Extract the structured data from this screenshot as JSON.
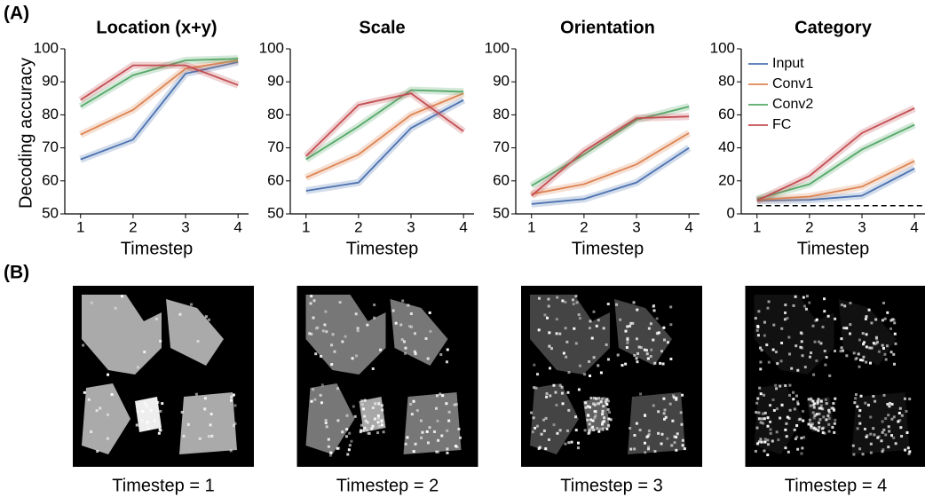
{
  "panel_labels": [
    "(A)",
    "(B)"
  ],
  "chart_data": [
    {
      "type": "line",
      "title": "Location (x+y)",
      "xlabel": "Timestep",
      "ylabel": "Decoding accuracy",
      "x": [
        1,
        2,
        3,
        4
      ],
      "xlim": [
        0.7,
        4.2
      ],
      "xticks": [
        1,
        2,
        3,
        4
      ],
      "ylim": [
        50,
        100
      ],
      "yticks": [
        50,
        60,
        70,
        80,
        90,
        100
      ],
      "series": [
        {
          "name": "Input",
          "color": "#4c72b0",
          "values": [
            66.5,
            72.5,
            92.5,
            96
          ]
        },
        {
          "name": "Conv1",
          "color": "#dd8452",
          "values": [
            74,
            81.5,
            94,
            96.5
          ]
        },
        {
          "name": "Conv2",
          "color": "#55a868",
          "values": [
            82.5,
            92,
            96.5,
            97
          ]
        },
        {
          "name": "FC",
          "color": "#c44e52",
          "values": [
            84.5,
            95,
            95,
            89
          ]
        }
      ]
    },
    {
      "type": "line",
      "title": "Scale",
      "xlabel": "Timestep",
      "x": [
        1,
        2,
        3,
        4
      ],
      "xlim": [
        0.7,
        4.2
      ],
      "xticks": [
        1,
        2,
        3,
        4
      ],
      "ylim": [
        50,
        100
      ],
      "yticks": [
        50,
        60,
        70,
        80,
        90,
        100
      ],
      "series": [
        {
          "name": "Input",
          "color": "#4c72b0",
          "values": [
            57,
            59.5,
            76,
            84.5
          ]
        },
        {
          "name": "Conv1",
          "color": "#dd8452",
          "values": [
            61,
            68,
            80,
            86.5
          ]
        },
        {
          "name": "Conv2",
          "color": "#55a868",
          "values": [
            66.5,
            76.5,
            87.5,
            87
          ]
        },
        {
          "name": "FC",
          "color": "#c44e52",
          "values": [
            67.5,
            83,
            86.5,
            75
          ]
        }
      ]
    },
    {
      "type": "line",
      "title": "Orientation",
      "xlabel": "Timestep",
      "x": [
        1,
        2,
        3,
        4
      ],
      "xlim": [
        0.7,
        4.2
      ],
      "xticks": [
        1,
        2,
        3,
        4
      ],
      "ylim": [
        50,
        100
      ],
      "yticks": [
        50,
        60,
        70,
        80,
        90,
        100
      ],
      "series": [
        {
          "name": "Input",
          "color": "#4c72b0",
          "values": [
            53,
            54.5,
            59.5,
            70
          ]
        },
        {
          "name": "Conv1",
          "color": "#dd8452",
          "values": [
            56,
            59,
            65,
            74.5
          ]
        },
        {
          "name": "Conv2",
          "color": "#55a868",
          "values": [
            58.5,
            68,
            78.5,
            82.5
          ]
        },
        {
          "name": "FC",
          "color": "#c44e52",
          "values": [
            55.5,
            69,
            79,
            79.5
          ]
        }
      ]
    },
    {
      "type": "line",
      "title": "Category",
      "xlabel": "Timestep",
      "x": [
        1,
        2,
        3,
        4
      ],
      "xlim": [
        0.7,
        4.2
      ],
      "xticks": [
        1,
        2,
        3,
        4
      ],
      "ylim": [
        0,
        100
      ],
      "yticks": [
        0,
        20,
        40,
        60,
        80,
        100
      ],
      "legend": "upper left",
      "hline": 5,
      "hline_color": "#000000",
      "series": [
        {
          "name": "Input",
          "color": "#4c72b0",
          "values": [
            8,
            8.5,
            11,
            27.5
          ]
        },
        {
          "name": "Conv1",
          "color": "#dd8452",
          "values": [
            8.5,
            10.5,
            16.5,
            32
          ]
        },
        {
          "name": "Conv2",
          "color": "#55a868",
          "values": [
            9,
            18,
            39,
            54
          ]
        },
        {
          "name": "FC",
          "color": "#c44e52",
          "values": [
            8,
            23,
            49,
            64
          ]
        }
      ]
    }
  ],
  "images": {
    "captions": [
      "Timestep = 1",
      "Timestep = 2",
      "Timestep = 3",
      "Timestep = 4"
    ]
  }
}
